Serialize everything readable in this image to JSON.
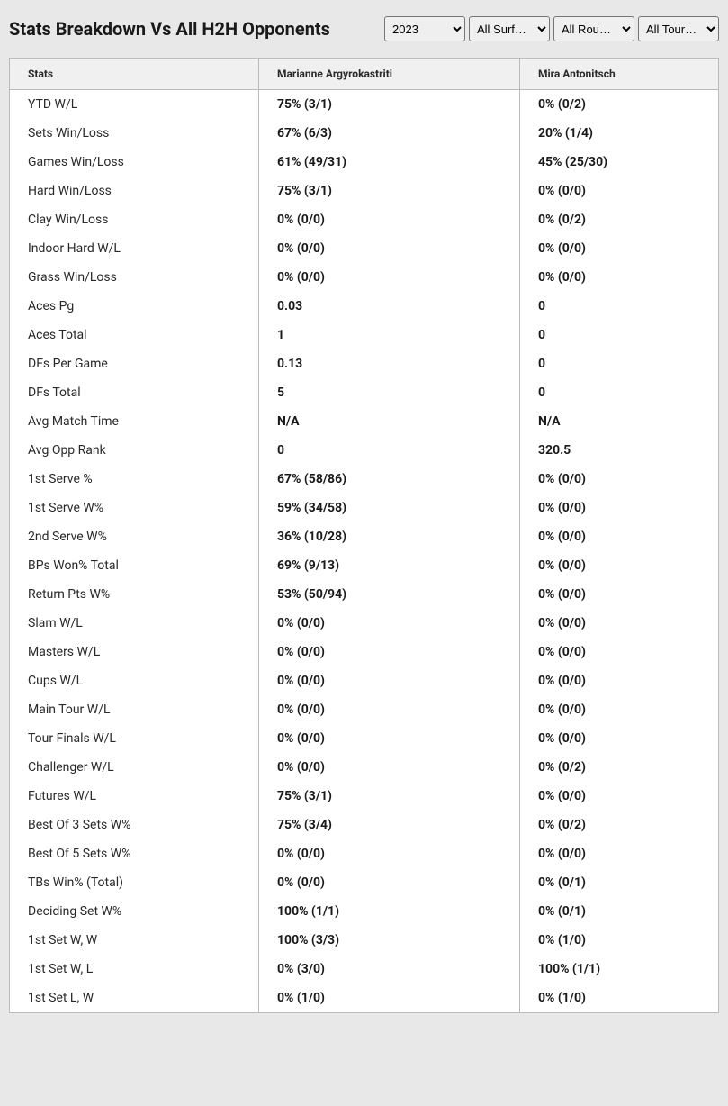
{
  "header": {
    "title": "Stats Breakdown Vs All H2H Opponents"
  },
  "filters": {
    "year": {
      "selected": "2023",
      "options": [
        "2023"
      ]
    },
    "surface": {
      "selected": "All Surf…",
      "options": [
        "All Surf…"
      ]
    },
    "round": {
      "selected": "All Rou…",
      "options": [
        "All Rou…"
      ]
    },
    "tournament": {
      "selected": "All Tour…",
      "options": [
        "All Tour…"
      ]
    }
  },
  "table": {
    "columns": {
      "stats": "Stats",
      "player1": "Marianne Argyrokastriti",
      "player2": "Mira Antonitsch"
    },
    "rows": [
      {
        "stat": "YTD W/L",
        "p1": "75% (3/1)",
        "p2": "0% (0/2)"
      },
      {
        "stat": "Sets Win/Loss",
        "p1": "67% (6/3)",
        "p2": "20% (1/4)"
      },
      {
        "stat": "Games Win/Loss",
        "p1": "61% (49/31)",
        "p2": "45% (25/30)"
      },
      {
        "stat": "Hard Win/Loss",
        "p1": "75% (3/1)",
        "p2": "0% (0/0)"
      },
      {
        "stat": "Clay Win/Loss",
        "p1": "0% (0/0)",
        "p2": "0% (0/2)"
      },
      {
        "stat": "Indoor Hard W/L",
        "p1": "0% (0/0)",
        "p2": "0% (0/0)"
      },
      {
        "stat": "Grass Win/Loss",
        "p1": "0% (0/0)",
        "p2": "0% (0/0)"
      },
      {
        "stat": "Aces Pg",
        "p1": "0.03",
        "p2": "0"
      },
      {
        "stat": "Aces Total",
        "p1": "1",
        "p2": "0"
      },
      {
        "stat": "DFs Per Game",
        "p1": "0.13",
        "p2": "0"
      },
      {
        "stat": "DFs Total",
        "p1": "5",
        "p2": "0"
      },
      {
        "stat": "Avg Match Time",
        "p1": "N/A",
        "p2": "N/A"
      },
      {
        "stat": "Avg Opp Rank",
        "p1": "0",
        "p2": "320.5"
      },
      {
        "stat": "1st Serve %",
        "p1": "67% (58/86)",
        "p2": "0% (0/0)"
      },
      {
        "stat": "1st Serve W%",
        "p1": "59% (34/58)",
        "p2": "0% (0/0)"
      },
      {
        "stat": "2nd Serve W%",
        "p1": "36% (10/28)",
        "p2": "0% (0/0)"
      },
      {
        "stat": "BPs Won% Total",
        "p1": "69% (9/13)",
        "p2": "0% (0/0)"
      },
      {
        "stat": "Return Pts W%",
        "p1": "53% (50/94)",
        "p2": "0% (0/0)"
      },
      {
        "stat": "Slam W/L",
        "p1": "0% (0/0)",
        "p2": "0% (0/0)"
      },
      {
        "stat": "Masters W/L",
        "p1": "0% (0/0)",
        "p2": "0% (0/0)"
      },
      {
        "stat": "Cups W/L",
        "p1": "0% (0/0)",
        "p2": "0% (0/0)"
      },
      {
        "stat": "Main Tour W/L",
        "p1": "0% (0/0)",
        "p2": "0% (0/0)"
      },
      {
        "stat": "Tour Finals W/L",
        "p1": "0% (0/0)",
        "p2": "0% (0/0)"
      },
      {
        "stat": "Challenger W/L",
        "p1": "0% (0/0)",
        "p2": "0% (0/2)"
      },
      {
        "stat": "Futures W/L",
        "p1": "75% (3/1)",
        "p2": "0% (0/0)"
      },
      {
        "stat": "Best Of 3 Sets W%",
        "p1": "75% (3/4)",
        "p2": "0% (0/2)"
      },
      {
        "stat": "Best Of 5 Sets W%",
        "p1": "0% (0/0)",
        "p2": "0% (0/0)"
      },
      {
        "stat": "TBs Win% (Total)",
        "p1": "0% (0/0)",
        "p2": "0% (0/1)"
      },
      {
        "stat": "Deciding Set W%",
        "p1": "100% (1/1)",
        "p2": "0% (0/1)"
      },
      {
        "stat": "1st Set W, W",
        "p1": "100% (3/3)",
        "p2": "0% (1/0)"
      },
      {
        "stat": "1st Set W, L",
        "p1": "0% (3/0)",
        "p2": "100% (1/1)"
      },
      {
        "stat": "1st Set L, W",
        "p1": "0% (1/0)",
        "p2": "0% (1/0)"
      }
    ]
  },
  "styling": {
    "background_color": "#e8e8e8",
    "table_bg": "#ffffff",
    "header_bg": "#f0f0f0",
    "border_color": "#bbbbbb",
    "text_color": "#1a1a1a",
    "title_fontsize": 20,
    "header_fontsize": 12,
    "cell_fontsize": 14
  }
}
